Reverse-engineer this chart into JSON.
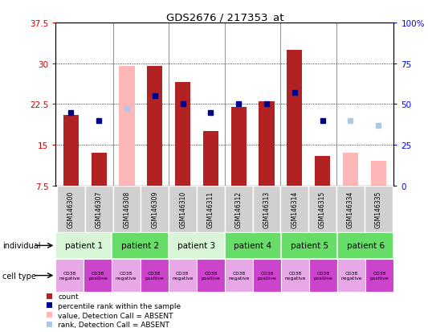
{
  "title": "GDS2676 / 217353_at",
  "samples": [
    "GSM146300",
    "GSM146307",
    "GSM146308",
    "GSM146309",
    "GSM146310",
    "GSM146311",
    "GSM146312",
    "GSM146313",
    "GSM146314",
    "GSM146315",
    "GSM146334",
    "GSM146335"
  ],
  "bar_values": [
    20.5,
    13.5,
    null,
    29.5,
    26.5,
    17.5,
    22.0,
    23.0,
    32.5,
    13.0,
    null,
    null
  ],
  "absent_bar_values": [
    null,
    null,
    29.5,
    null,
    null,
    null,
    null,
    null,
    null,
    null,
    13.5,
    12.0
  ],
  "rank_values": [
    45,
    40,
    null,
    55,
    50,
    45,
    50,
    50,
    57,
    40,
    null,
    null
  ],
  "absent_rank_values": [
    null,
    null,
    47,
    null,
    null,
    null,
    null,
    null,
    null,
    null,
    40,
    37
  ],
  "ylim_left": [
    7.5,
    37.5
  ],
  "ylim_right": [
    0,
    100
  ],
  "yticks_left": [
    7.5,
    15.0,
    22.5,
    30.0,
    37.5
  ],
  "yticks_right": [
    0,
    25,
    50,
    75,
    100
  ],
  "bar_color": "#b22222",
  "absent_bar_color": "#ffb6b6",
  "rank_color": "#00008b",
  "absent_rank_color": "#b0c8e8",
  "patients": [
    {
      "label": "patient 1",
      "cols": [
        0,
        1
      ],
      "color": "#d8f5d8"
    },
    {
      "label": "patient 2",
      "cols": [
        2,
        3
      ],
      "color": "#66dd66"
    },
    {
      "label": "patient 3",
      "cols": [
        4,
        5
      ],
      "color": "#d8f5d8"
    },
    {
      "label": "patient 4",
      "cols": [
        6,
        7
      ],
      "color": "#66dd66"
    },
    {
      "label": "patient 5",
      "cols": [
        8,
        9
      ],
      "color": "#66dd66"
    },
    {
      "label": "patient 6",
      "cols": [
        10,
        11
      ],
      "color": "#66dd66"
    }
  ],
  "cell_neg_color": "#e8a8e8",
  "cell_pos_color": "#cc44cc",
  "background_color": "#ffffff",
  "sample_bg_color": "#d0d0d0",
  "legend_items": [
    {
      "color": "#b22222",
      "label": "count"
    },
    {
      "color": "#00008b",
      "label": "percentile rank within the sample"
    },
    {
      "color": "#ffb6b6",
      "label": "value, Detection Call = ABSENT"
    },
    {
      "color": "#b0c8e8",
      "label": "rank, Detection Call = ABSENT"
    }
  ]
}
